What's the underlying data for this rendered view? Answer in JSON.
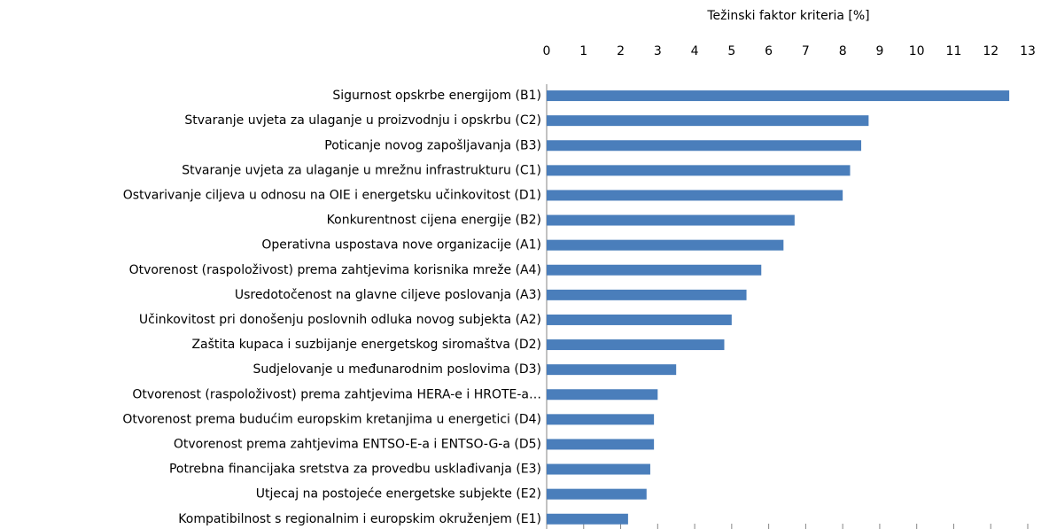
{
  "chart_data": {
    "type": "barh",
    "xlabel": "Težinski faktor kriteria [%]",
    "categories": [
      "Sigurnost opskrbe energijom (B1)",
      "Stvaranje uvjeta za ulaganje u proizvodnju i opskrbu (C2)",
      "Poticanje novog zapošljavanja (B3)",
      "Stvaranje uvjeta  za ulaganje u mrežnu infrastrukturu (C1)",
      "Ostvarivanje ciljeva u odnosu na OIE i energetsku učinkovitost (D1)",
      "Konkurentnost cijena energije (B2)",
      "Operativna uspostava nove organizacije (A1)",
      "Otvorenost (raspoloživost) prema zahtjevima korisnika mreže (A4)",
      "Usredotočenost na glavne ciljeve poslovanja (A3)",
      "Učinkovitost pri donošenju poslovnih odluka novog subjekta (A2)",
      "Zaštita kupaca i suzbijanje energetskog siromaštva (D2)",
      "Sudjelovanje u međunarodnim  poslovima (D3)",
      "Otvorenost (raspoloživost) prema zahtjevima HERA-e i HROTE-a…",
      "Otvorenost prema budućim europskim kretanjima u energetici (D4)",
      "Otvorenost prema zahtjevima ENTSO-E-a i ENTSO-G-a (D5)",
      "Potrebna financijaka sretstva za provedbu usklađivanja (E3)",
      "Utjecaj na postojeće energetske subjekte (E2)",
      "Kompatibilnost s regionalnim  i europskim okruženjem (E1)"
    ],
    "values": [
      12.5,
      8.7,
      8.5,
      8.2,
      8.0,
      6.7,
      6.4,
      5.8,
      5.4,
      5.0,
      4.8,
      3.5,
      3.0,
      2.9,
      2.9,
      2.8,
      2.7,
      2.2
    ],
    "color": "#4a7ebb",
    "xlim": [
      0,
      13
    ],
    "xticks": [
      0,
      1,
      2,
      3,
      4,
      5,
      6,
      7,
      8,
      9,
      10,
      11,
      12,
      13
    ],
    "grid": false
  }
}
